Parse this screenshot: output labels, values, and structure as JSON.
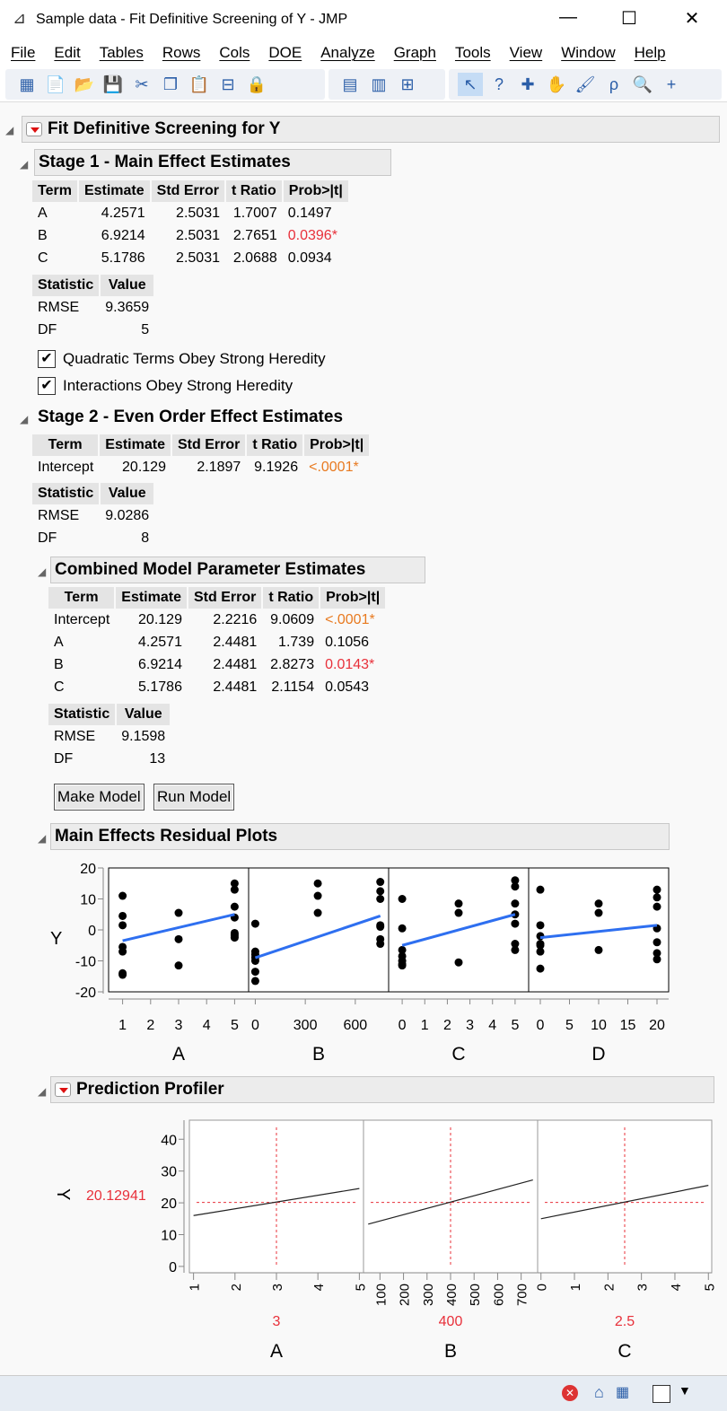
{
  "window": {
    "title": "Sample data - Fit Definitive Screening of Y - JMP",
    "minimize": "—",
    "maximize": "☐",
    "close": "✕"
  },
  "menu": [
    "File",
    "Edit",
    "Tables",
    "Rows",
    "Cols",
    "DOE",
    "Analyze",
    "Graph",
    "Tools",
    "View",
    "Window",
    "Help"
  ],
  "toolbar": {
    "group1": [
      "new-data-table-icon",
      "new-script-icon",
      "open-folder-icon",
      "save-icon",
      "cut-icon",
      "copy-icon",
      "paste-icon",
      "journal-icon",
      "lock-icon"
    ],
    "group2": [
      "data-grid-icon",
      "columns-icon",
      "add-rows-icon"
    ],
    "group3": [
      "arrow-icon",
      "help-icon",
      "crosshair-icon",
      "hand-icon",
      "brush-icon",
      "lasso-icon",
      "magnifier-icon",
      "plus-icon"
    ]
  },
  "report": {
    "title": "Fit Definitive Screening for Y",
    "stage1": {
      "title": "Stage 1 - Main Effect Estimates",
      "headers": [
        "Term",
        "Estimate",
        "Std Error",
        "t Ratio",
        "Prob>|t|"
      ],
      "rows": [
        [
          "A",
          "4.2571",
          "2.5031",
          "1.7007",
          "0.1497"
        ],
        [
          "B",
          "6.9214",
          "2.5031",
          "2.7651",
          "0.0396*"
        ],
        [
          "C",
          "5.1786",
          "2.5031",
          "2.0688",
          "0.0934"
        ]
      ],
      "stat_headers": [
        "Statistic",
        "Value"
      ],
      "stats": [
        [
          "RMSE",
          "9.3659"
        ],
        [
          "DF",
          "5"
        ]
      ],
      "check1": "Quadratic Terms Obey Strong Heredity",
      "check2": "Interactions Obey Strong Heredity"
    },
    "stage2": {
      "title": "Stage 2 - Even Order Effect Estimates",
      "headers": [
        "Term",
        "Estimate",
        "Std Error",
        "t Ratio",
        "Prob>|t|"
      ],
      "rows": [
        [
          "Intercept",
          "20.129",
          "2.1897",
          "9.1926",
          "<.0001*"
        ]
      ],
      "stat_headers": [
        "Statistic",
        "Value"
      ],
      "stats": [
        [
          "RMSE",
          "9.0286"
        ],
        [
          "DF",
          "8"
        ]
      ]
    },
    "combined": {
      "title": "Combined Model Parameter Estimates",
      "headers": [
        "Term",
        "Estimate",
        "Std Error",
        "t Ratio",
        "Prob>|t|"
      ],
      "rows": [
        [
          "Intercept",
          "20.129",
          "2.2216",
          "9.0609",
          "<.0001*"
        ],
        [
          "A",
          "4.2571",
          "2.4481",
          "1.739",
          "0.1056"
        ],
        [
          "B",
          "6.9214",
          "2.4481",
          "2.8273",
          "0.0143*"
        ],
        [
          "C",
          "5.1786",
          "2.4481",
          "2.1154",
          "0.0543"
        ]
      ],
      "stat_headers": [
        "Statistic",
        "Value"
      ],
      "stats": [
        [
          "RMSE",
          "9.1598"
        ],
        [
          "DF",
          "13"
        ]
      ],
      "make_model": "Make Model",
      "run_model": "Run Model"
    },
    "colors": {
      "significant": "#e8303a",
      "highly_significant": "#e87a20",
      "fit_line": "#2e6ff0",
      "reference": "#e8303a"
    }
  },
  "chart_data": [
    {
      "type": "scatter",
      "title": "Main Effects Residual Plots",
      "ylabel": "Y",
      "ylim": [
        -20,
        20
      ],
      "yticks": [
        20,
        10,
        0,
        -10,
        -20
      ],
      "panels": [
        {
          "xlabel": "A",
          "xlim": [
            0.5,
            5.5
          ],
          "xticks": [
            1,
            2,
            3,
            4,
            5
          ],
          "points": [
            [
              1,
              11
            ],
            [
              1,
              4.5
            ],
            [
              1,
              1.5
            ],
            [
              1,
              -5.5
            ],
            [
              1,
              -7
            ],
            [
              1,
              -14
            ],
            [
              1,
              -14.5
            ],
            [
              3,
              5.5
            ],
            [
              3,
              -3
            ],
            [
              3,
              -11.5
            ],
            [
              5,
              15
            ],
            [
              5,
              13
            ],
            [
              5,
              7.5
            ],
            [
              5,
              4
            ],
            [
              5,
              -1
            ],
            [
              5,
              -1.5
            ],
            [
              5,
              -2
            ],
            [
              5,
              -2.5
            ]
          ],
          "line": [
            [
              1,
              -3.5
            ],
            [
              5,
              5
            ]
          ]
        },
        {
          "xlabel": "B",
          "xlim": [
            -40,
            800
          ],
          "xticks": [
            0,
            300,
            600
          ],
          "points": [
            [
              0,
              2
            ],
            [
              0,
              -7
            ],
            [
              0,
              -8
            ],
            [
              0,
              -9
            ],
            [
              0,
              -10
            ],
            [
              0,
              -13.5
            ],
            [
              0,
              -16.5
            ],
            [
              375,
              15
            ],
            [
              375,
              11
            ],
            [
              375,
              5.5
            ],
            [
              750,
              15.5
            ],
            [
              750,
              12.5
            ],
            [
              750,
              10
            ],
            [
              750,
              1.5
            ],
            [
              750,
              1
            ],
            [
              750,
              -3
            ],
            [
              750,
              -4.5
            ]
          ],
          "line": [
            [
              0,
              -9
            ],
            [
              750,
              4.5
            ]
          ]
        },
        {
          "xlabel": "C",
          "xlim": [
            -0.6,
            5.6
          ],
          "xticks": [
            0,
            1,
            2,
            3,
            4,
            5
          ],
          "points": [
            [
              0,
              10
            ],
            [
              0,
              0.5
            ],
            [
              0,
              -6.5
            ],
            [
              0,
              -8.5
            ],
            [
              0,
              -10
            ],
            [
              0,
              -11
            ],
            [
              0,
              -11.5
            ],
            [
              2.5,
              8.5
            ],
            [
              2.5,
              5.5
            ],
            [
              2.5,
              -10.5
            ],
            [
              5,
              16
            ],
            [
              5,
              14
            ],
            [
              5,
              8.5
            ],
            [
              5,
              5
            ],
            [
              5,
              2
            ],
            [
              5,
              -4.5
            ],
            [
              5,
              -6.5
            ]
          ],
          "line": [
            [
              0,
              -5
            ],
            [
              5,
              5
            ]
          ]
        },
        {
          "xlabel": "D",
          "xlim": [
            -2,
            22
          ],
          "xticks": [
            0,
            5,
            10,
            15,
            20
          ],
          "points": [
            [
              0,
              13
            ],
            [
              0,
              1.5
            ],
            [
              0,
              -2
            ],
            [
              0,
              -4.5
            ],
            [
              0,
              -5
            ],
            [
              0,
              -7
            ],
            [
              0,
              -12.5
            ],
            [
              10,
              8.5
            ],
            [
              10,
              5.5
            ],
            [
              10,
              -6.5
            ],
            [
              20,
              13
            ],
            [
              20,
              10.5
            ],
            [
              20,
              7.5
            ],
            [
              20,
              0.5
            ],
            [
              20,
              -4
            ],
            [
              20,
              -7.5
            ],
            [
              20,
              -9.5
            ]
          ],
          "line": [
            [
              0,
              -2.5
            ],
            [
              20,
              1.5
            ]
          ]
        }
      ]
    },
    {
      "type": "line",
      "title": "Prediction Profiler",
      "ylabel": "Y",
      "ylim": [
        -2,
        46
      ],
      "yticks": [
        0,
        10,
        20,
        30,
        40
      ],
      "predicted": "20.12941",
      "panels": [
        {
          "xlabel": "A",
          "xlim": [
            0.9,
            5.1
          ],
          "xticks": [
            1,
            2,
            3,
            4,
            5
          ],
          "current": "3",
          "line": [
            [
              1,
              16
            ],
            [
              5,
              24.5
            ]
          ]
        },
        {
          "xlabel": "B",
          "xlim": [
            30,
            770
          ],
          "xticks": [
            100,
            200,
            300,
            400,
            500,
            600,
            700
          ],
          "current": "400",
          "line": [
            [
              50,
              13.3
            ],
            [
              750,
              27.2
            ]
          ]
        },
        {
          "xlabel": "C",
          "xlim": [
            -0.1,
            5.1
          ],
          "xticks": [
            0,
            1,
            2,
            3,
            4,
            5
          ],
          "current": "2.5",
          "line": [
            [
              0,
              15
            ],
            [
              5,
              25.5
            ]
          ]
        }
      ]
    }
  ]
}
